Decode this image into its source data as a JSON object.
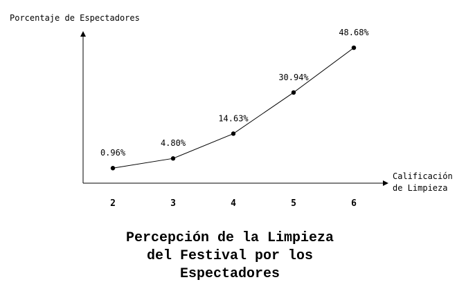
{
  "chart_data": {
    "type": "line",
    "title_lines": [
      "Percepción de la Limpieza",
      "del Festival por los",
      "Espectadores"
    ],
    "ylabel": "Porcentaje de Espectadores",
    "xlabel_lines": [
      "Calificación",
      "de Limpieza"
    ],
    "x": [
      2,
      3,
      4,
      5,
      6
    ],
    "values": [
      0.96,
      4.8,
      14.63,
      30.94,
      48.68
    ],
    "data_labels": [
      "0.96%",
      "4.80%",
      "14.63%",
      "30.94%",
      "48.68%"
    ],
    "x_tick_labels": [
      "2",
      "3",
      "4",
      "5",
      "6"
    ],
    "ylim": [
      -5,
      55
    ],
    "grid": false,
    "legend": "none",
    "colors": {
      "line": "#000000",
      "marker": "#000000",
      "axis": "#000000"
    }
  }
}
